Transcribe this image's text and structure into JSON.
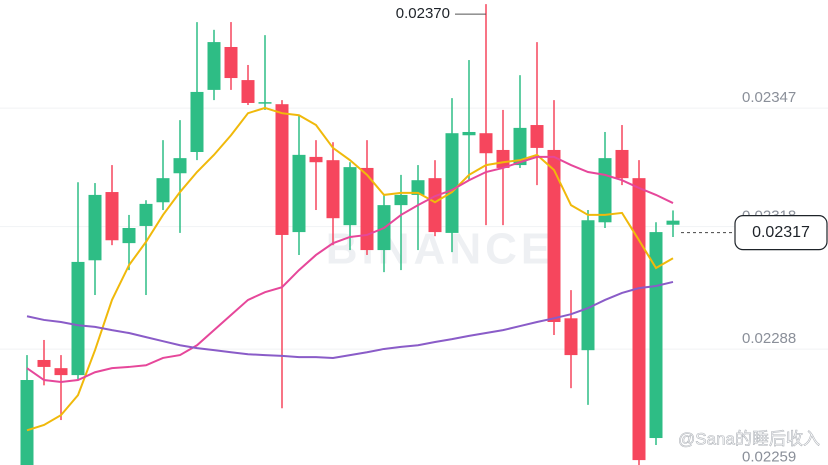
{
  "chart_data": {
    "type": "candlestick",
    "up_color": "#2ebd85",
    "down_color": "#f6465d",
    "open": [
      0.022572,
      0.022829,
      0.022809,
      0.022792,
      0.023073,
      0.02324,
      0.023115,
      0.023157,
      0.023215,
      0.023286,
      0.023338,
      0.02349,
      0.023595,
      0.023514,
      0.023458,
      0.023455,
      0.023142,
      0.023326,
      0.023318,
      0.023159,
      0.023299,
      0.023098,
      0.023208,
      0.023233,
      0.023274,
      0.02314,
      0.023379,
      0.023384,
      0.023343,
      0.023306,
      0.023404,
      0.023343,
      0.022931,
      0.022853,
      0.023166,
      0.023343,
      0.023274,
      0.022638,
      0.02316
    ],
    "high": [
      0.022841,
      0.022878,
      0.022841,
      0.023264,
      0.023262,
      0.023306,
      0.023184,
      0.02322,
      0.023367,
      0.023416,
      0.023656,
      0.023637,
      0.023656,
      0.023551,
      0.023624,
      0.023465,
      0.023428,
      0.023367,
      0.023362,
      0.023313,
      0.023367,
      0.023233,
      0.023282,
      0.023306,
      0.023318,
      0.02347,
      0.023563,
      0.0237,
      0.023441,
      0.023526,
      0.023607,
      0.023465,
      0.023,
      0.023196,
      0.023387,
      0.023404,
      0.023318,
      0.023166,
      0.023195
    ],
    "low": [
      0.022572,
      0.022767,
      0.022682,
      0.02278,
      0.022988,
      0.02311,
      0.023049,
      0.022988,
      0.023196,
      0.02314,
      0.023318,
      0.023465,
      0.02349,
      0.023453,
      0.023441,
      0.022711,
      0.023086,
      0.023196,
      0.02311,
      0.023098,
      0.023086,
      0.023044,
      0.023049,
      0.023098,
      0.023132,
      0.023093,
      0.023269,
      0.023159,
      0.023159,
      0.023299,
      0.023257,
      0.02289,
      0.02276,
      0.022719,
      0.023152,
      0.023257,
      0.022572,
      0.022621,
      0.02313
    ],
    "close": [
      0.02278,
      0.022812,
      0.022792,
      0.023069,
      0.023233,
      0.023122,
      0.023152,
      0.023211,
      0.023274,
      0.023323,
      0.023485,
      0.023607,
      0.023519,
      0.023458,
      0.02346,
      0.023135,
      0.023331,
      0.023313,
      0.023176,
      0.023301,
      0.023098,
      0.023208,
      0.023233,
      0.023269,
      0.023142,
      0.023384,
      0.023387,
      0.023335,
      0.023299,
      0.023397,
      0.023348,
      0.022922,
      0.022841,
      0.023171,
      0.023323,
      0.023274,
      0.022584,
      0.023142,
      0.02317
    ],
    "lines": [
      {
        "color": "#f0b90b",
        "values": [
          0.022657,
          0.02267,
          0.022694,
          0.022743,
          0.022853,
          0.022976,
          0.023061,
          0.023118,
          0.023184,
          0.02324,
          0.023289,
          0.023331,
          0.023379,
          0.023433,
          0.023446,
          0.023433,
          0.023428,
          0.023404,
          0.023348,
          0.023318,
          0.023282,
          0.023233,
          0.023238,
          0.023238,
          0.023215,
          0.02324,
          0.023282,
          0.023306,
          0.023313,
          0.023318,
          0.023331,
          0.023294,
          0.023208,
          0.023184,
          0.023184,
          0.023189,
          0.023122,
          0.023054,
          0.023078
        ]
      },
      {
        "color": "#e6479a",
        "values": [
          0.022809,
          0.02278,
          0.022775,
          0.02278,
          0.022799,
          0.022809,
          0.022812,
          0.022816,
          0.022834,
          0.022841,
          0.022865,
          0.022902,
          0.022939,
          0.022976,
          0.022995,
          0.023007,
          0.023049,
          0.023086,
          0.023115,
          0.02313,
          0.023135,
          0.023152,
          0.023184,
          0.023208,
          0.02323,
          0.023245,
          0.023269,
          0.023289,
          0.023299,
          0.023313,
          0.023326,
          0.023326,
          0.023306,
          0.023289,
          0.023282,
          0.023269,
          0.02325,
          0.023233,
          0.023213
        ]
      },
      {
        "color": "#8a5cc8",
        "values": [
          0.022936,
          0.022927,
          0.022922,
          0.022914,
          0.02291,
          0.022902,
          0.022895,
          0.022885,
          0.022875,
          0.022865,
          0.022858,
          0.022853,
          0.022848,
          0.022843,
          0.022841,
          0.022839,
          0.022836,
          0.022836,
          0.022834,
          0.022841,
          0.022848,
          0.022856,
          0.022861,
          0.022865,
          0.022873,
          0.02288,
          0.022888,
          0.022895,
          0.022902,
          0.022912,
          0.022922,
          0.022931,
          0.022941,
          0.022956,
          0.022976,
          0.022993,
          0.023005,
          0.02301,
          0.02302
        ]
      }
    ],
    "ylim": [
      0.022572,
      0.02371
    ],
    "yticks": [
      0.02259,
      0.02288,
      0.02318,
      0.02347
    ],
    "grid": true,
    "high_label": {
      "value": 0.0237,
      "label": "0.02370"
    },
    "current_price": {
      "value": 0.02317,
      "label": "0.02317"
    },
    "watermark": "BINANCE",
    "credit": "@Sana的睡后收入"
  }
}
